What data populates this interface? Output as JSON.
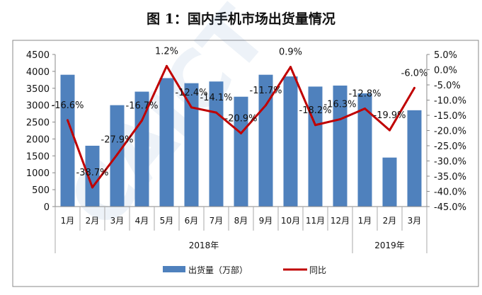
{
  "chart_data": {
    "type": "bar+line",
    "title": "图 1：国内手机市场出货量情况",
    "categories": [
      "1月",
      "2月",
      "3月",
      "4月",
      "5月",
      "6月",
      "7月",
      "8月",
      "9月",
      "10月",
      "11月",
      "12月",
      "1月",
      "2月",
      "3月"
    ],
    "groups": [
      {
        "label": "2018年",
        "count": 12
      },
      {
        "label": "2019年",
        "count": 3
      }
    ],
    "series": [
      {
        "name": "出货量（万部）",
        "type": "bar",
        "axis": "left",
        "color": "#4f81bd",
        "values": [
          3900,
          1800,
          3000,
          3400,
          3800,
          3650,
          3700,
          3250,
          3900,
          3850,
          3550,
          3580,
          3350,
          1450,
          2850
        ]
      },
      {
        "name": "同比",
        "type": "line",
        "axis": "right",
        "color": "#c00000",
        "values": [
          -16.6,
          -38.7,
          -27.9,
          -16.7,
          1.2,
          -12.4,
          -14.1,
          -20.9,
          -11.7,
          0.9,
          -18.2,
          -16.3,
          -12.8,
          -19.9,
          -6.0
        ],
        "labels": [
          "-16.6%",
          "-38.7%",
          "-27.9%",
          "-16.7%",
          "1.2%",
          "-12.4%",
          "-14.1%",
          "-20.9%",
          "-11.7%",
          "0.9%",
          "-18.2%",
          "-16.3%",
          "-12.8%",
          "-19.9%",
          "-6.0%"
        ]
      }
    ],
    "y_left": {
      "range": [
        0,
        4500
      ],
      "ticks": [
        "0",
        "500",
        "1000",
        "1500",
        "2000",
        "2500",
        "3000",
        "3500",
        "4000",
        "4500"
      ]
    },
    "y_right": {
      "range": [
        -45,
        5
      ],
      "ticks": [
        "5.0%",
        "0.0%",
        "-5.0%",
        "-10.0%",
        "-15.0%",
        "-20.0%",
        "-25.0%",
        "-30.0%",
        "-35.0%",
        "-40.0%",
        "-45.0%"
      ]
    },
    "grid": false,
    "legend": "bottom"
  }
}
